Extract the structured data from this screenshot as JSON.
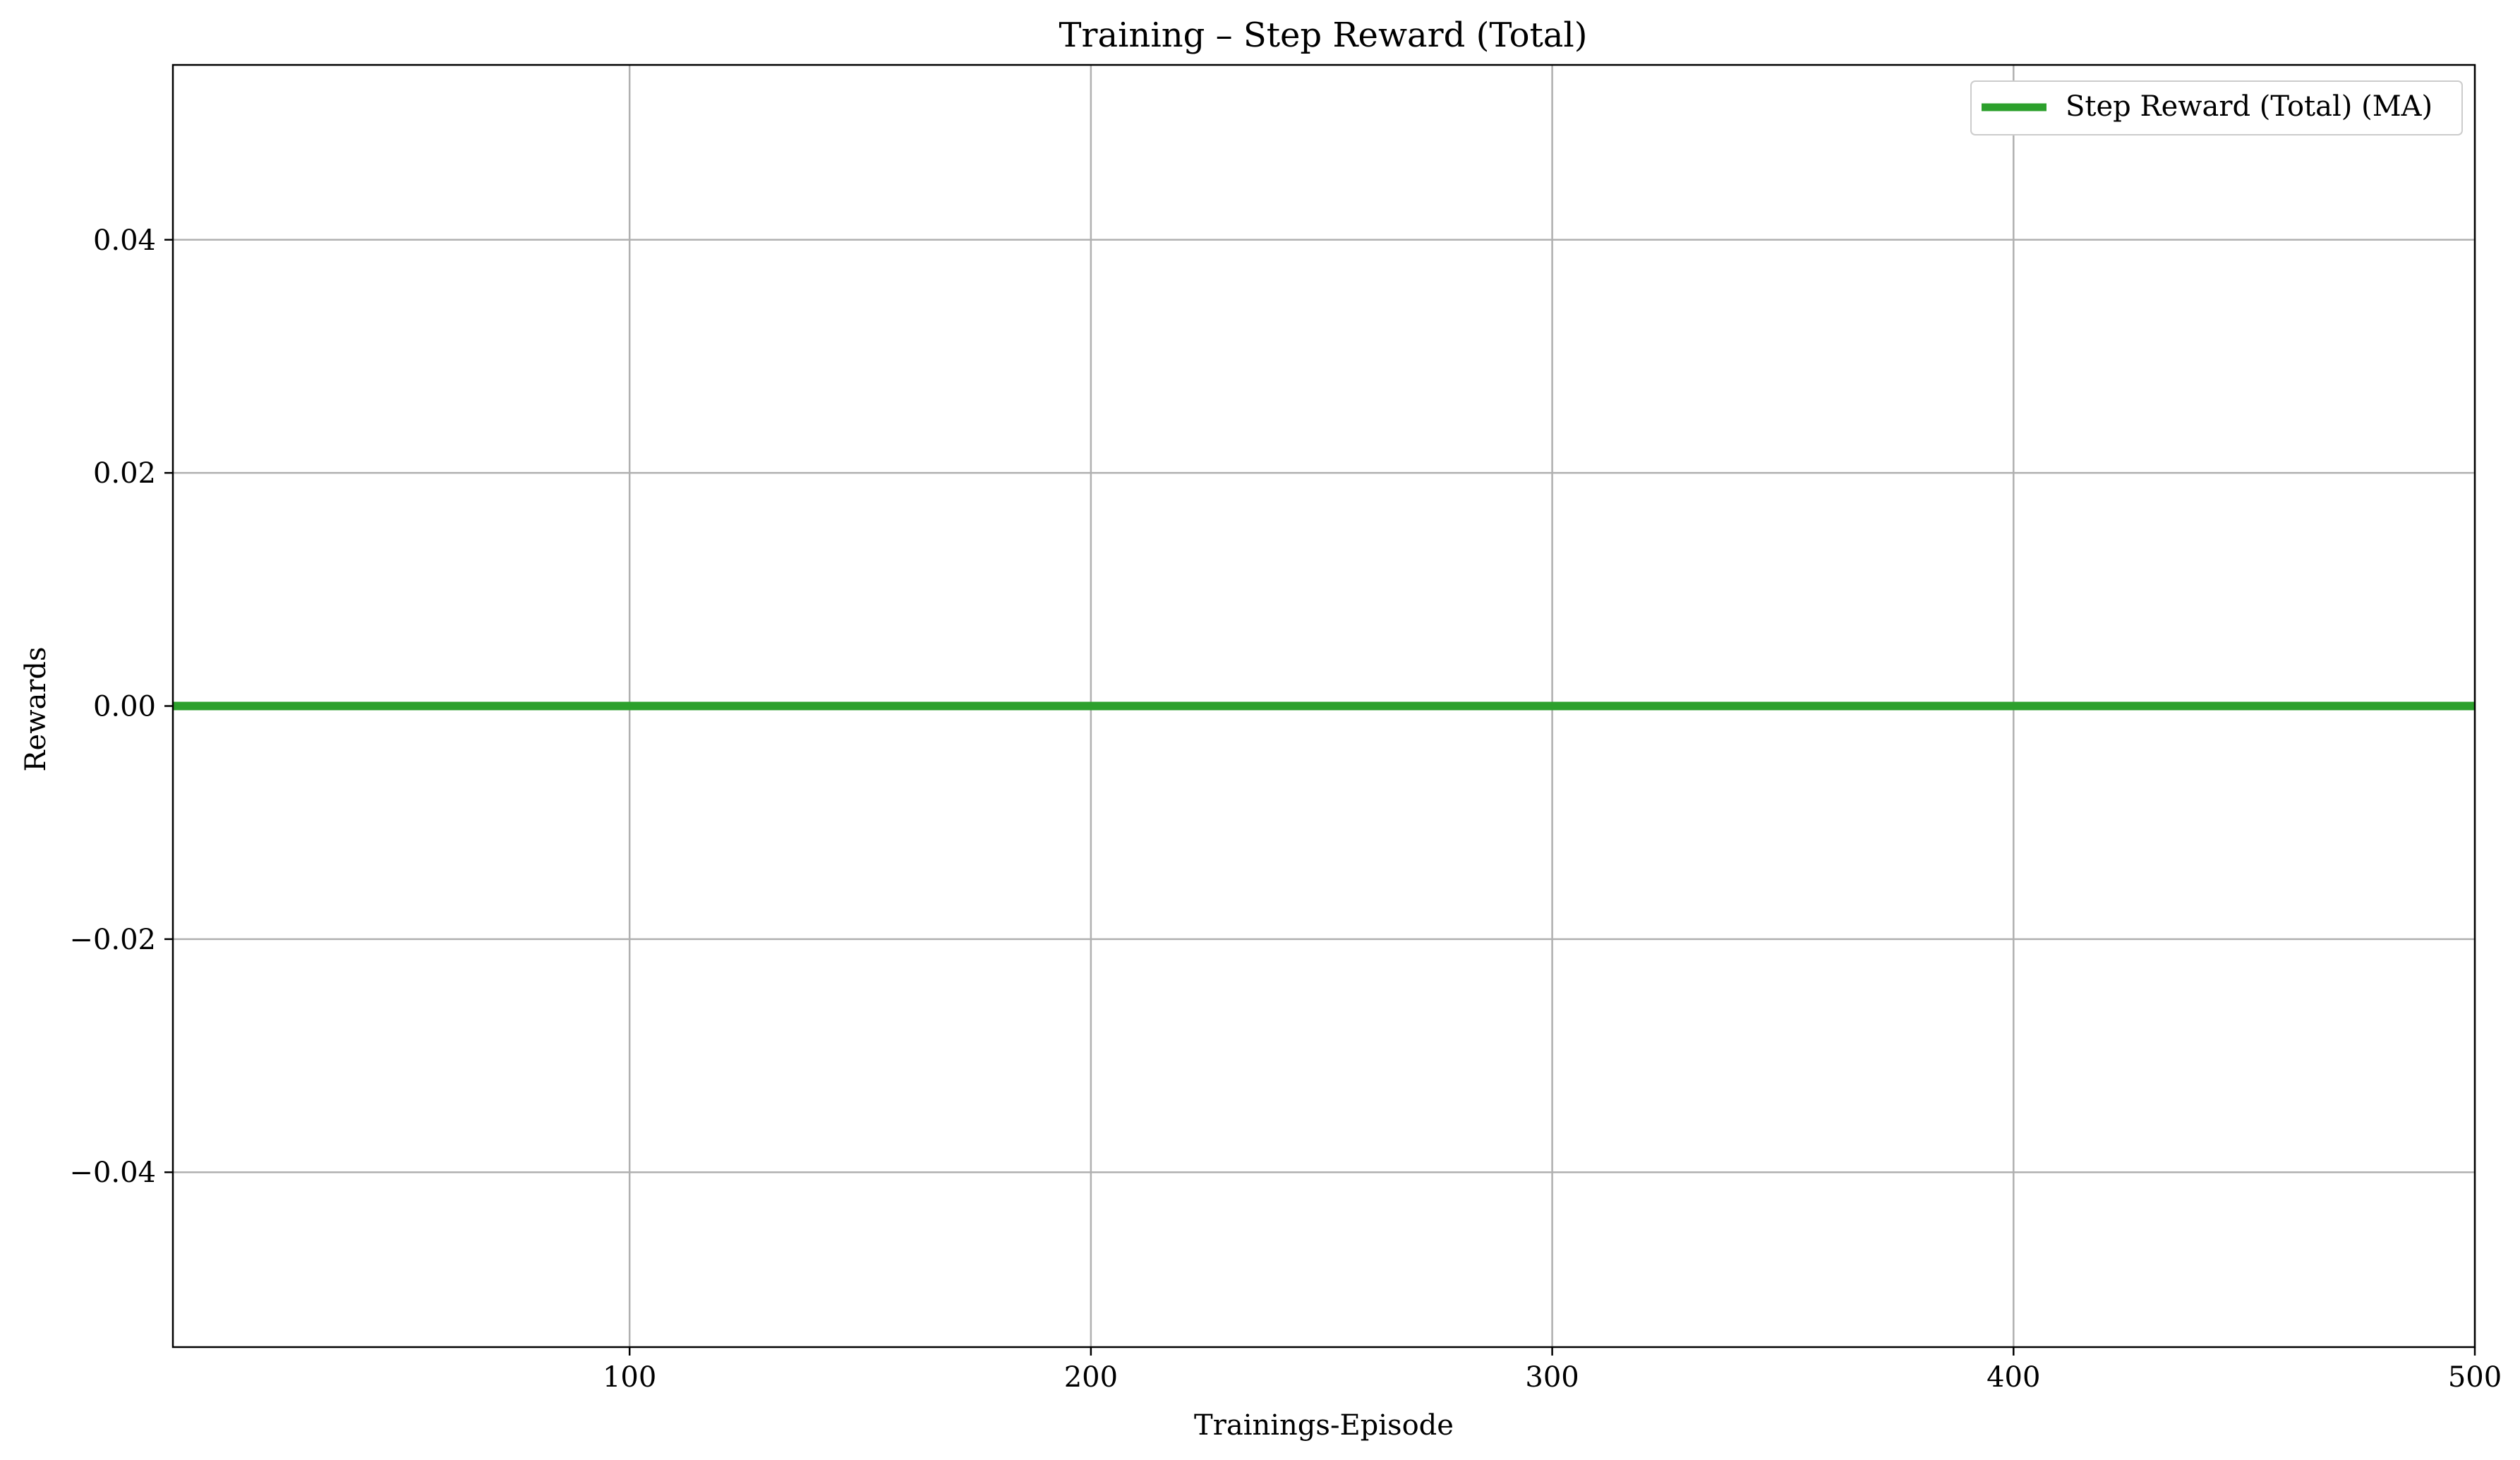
{
  "chart_data": {
    "type": "line",
    "title": "Training – Step Reward (Total)",
    "xlabel": "Trainings-Episode",
    "ylabel": "Rewards",
    "xlim": [
      1,
      500
    ],
    "ylim": [
      -0.055,
      0.055
    ],
    "xticks": [
      100,
      200,
      300,
      400,
      500
    ],
    "xtick_labels": [
      "100",
      "200",
      "300",
      "400",
      "500"
    ],
    "yticks": [
      -0.04,
      -0.02,
      0.0,
      0.02,
      0.04
    ],
    "ytick_labels": [
      "−0.04",
      "−0.02",
      "0.00",
      "0.02",
      "0.04"
    ],
    "grid": true,
    "legend_position": "top-right",
    "series": [
      {
        "name": "Step Reward (Total) (MA)",
        "color": "#2ca02c",
        "x": [
          1,
          500
        ],
        "y": [
          0.0,
          0.0
        ]
      }
    ]
  }
}
